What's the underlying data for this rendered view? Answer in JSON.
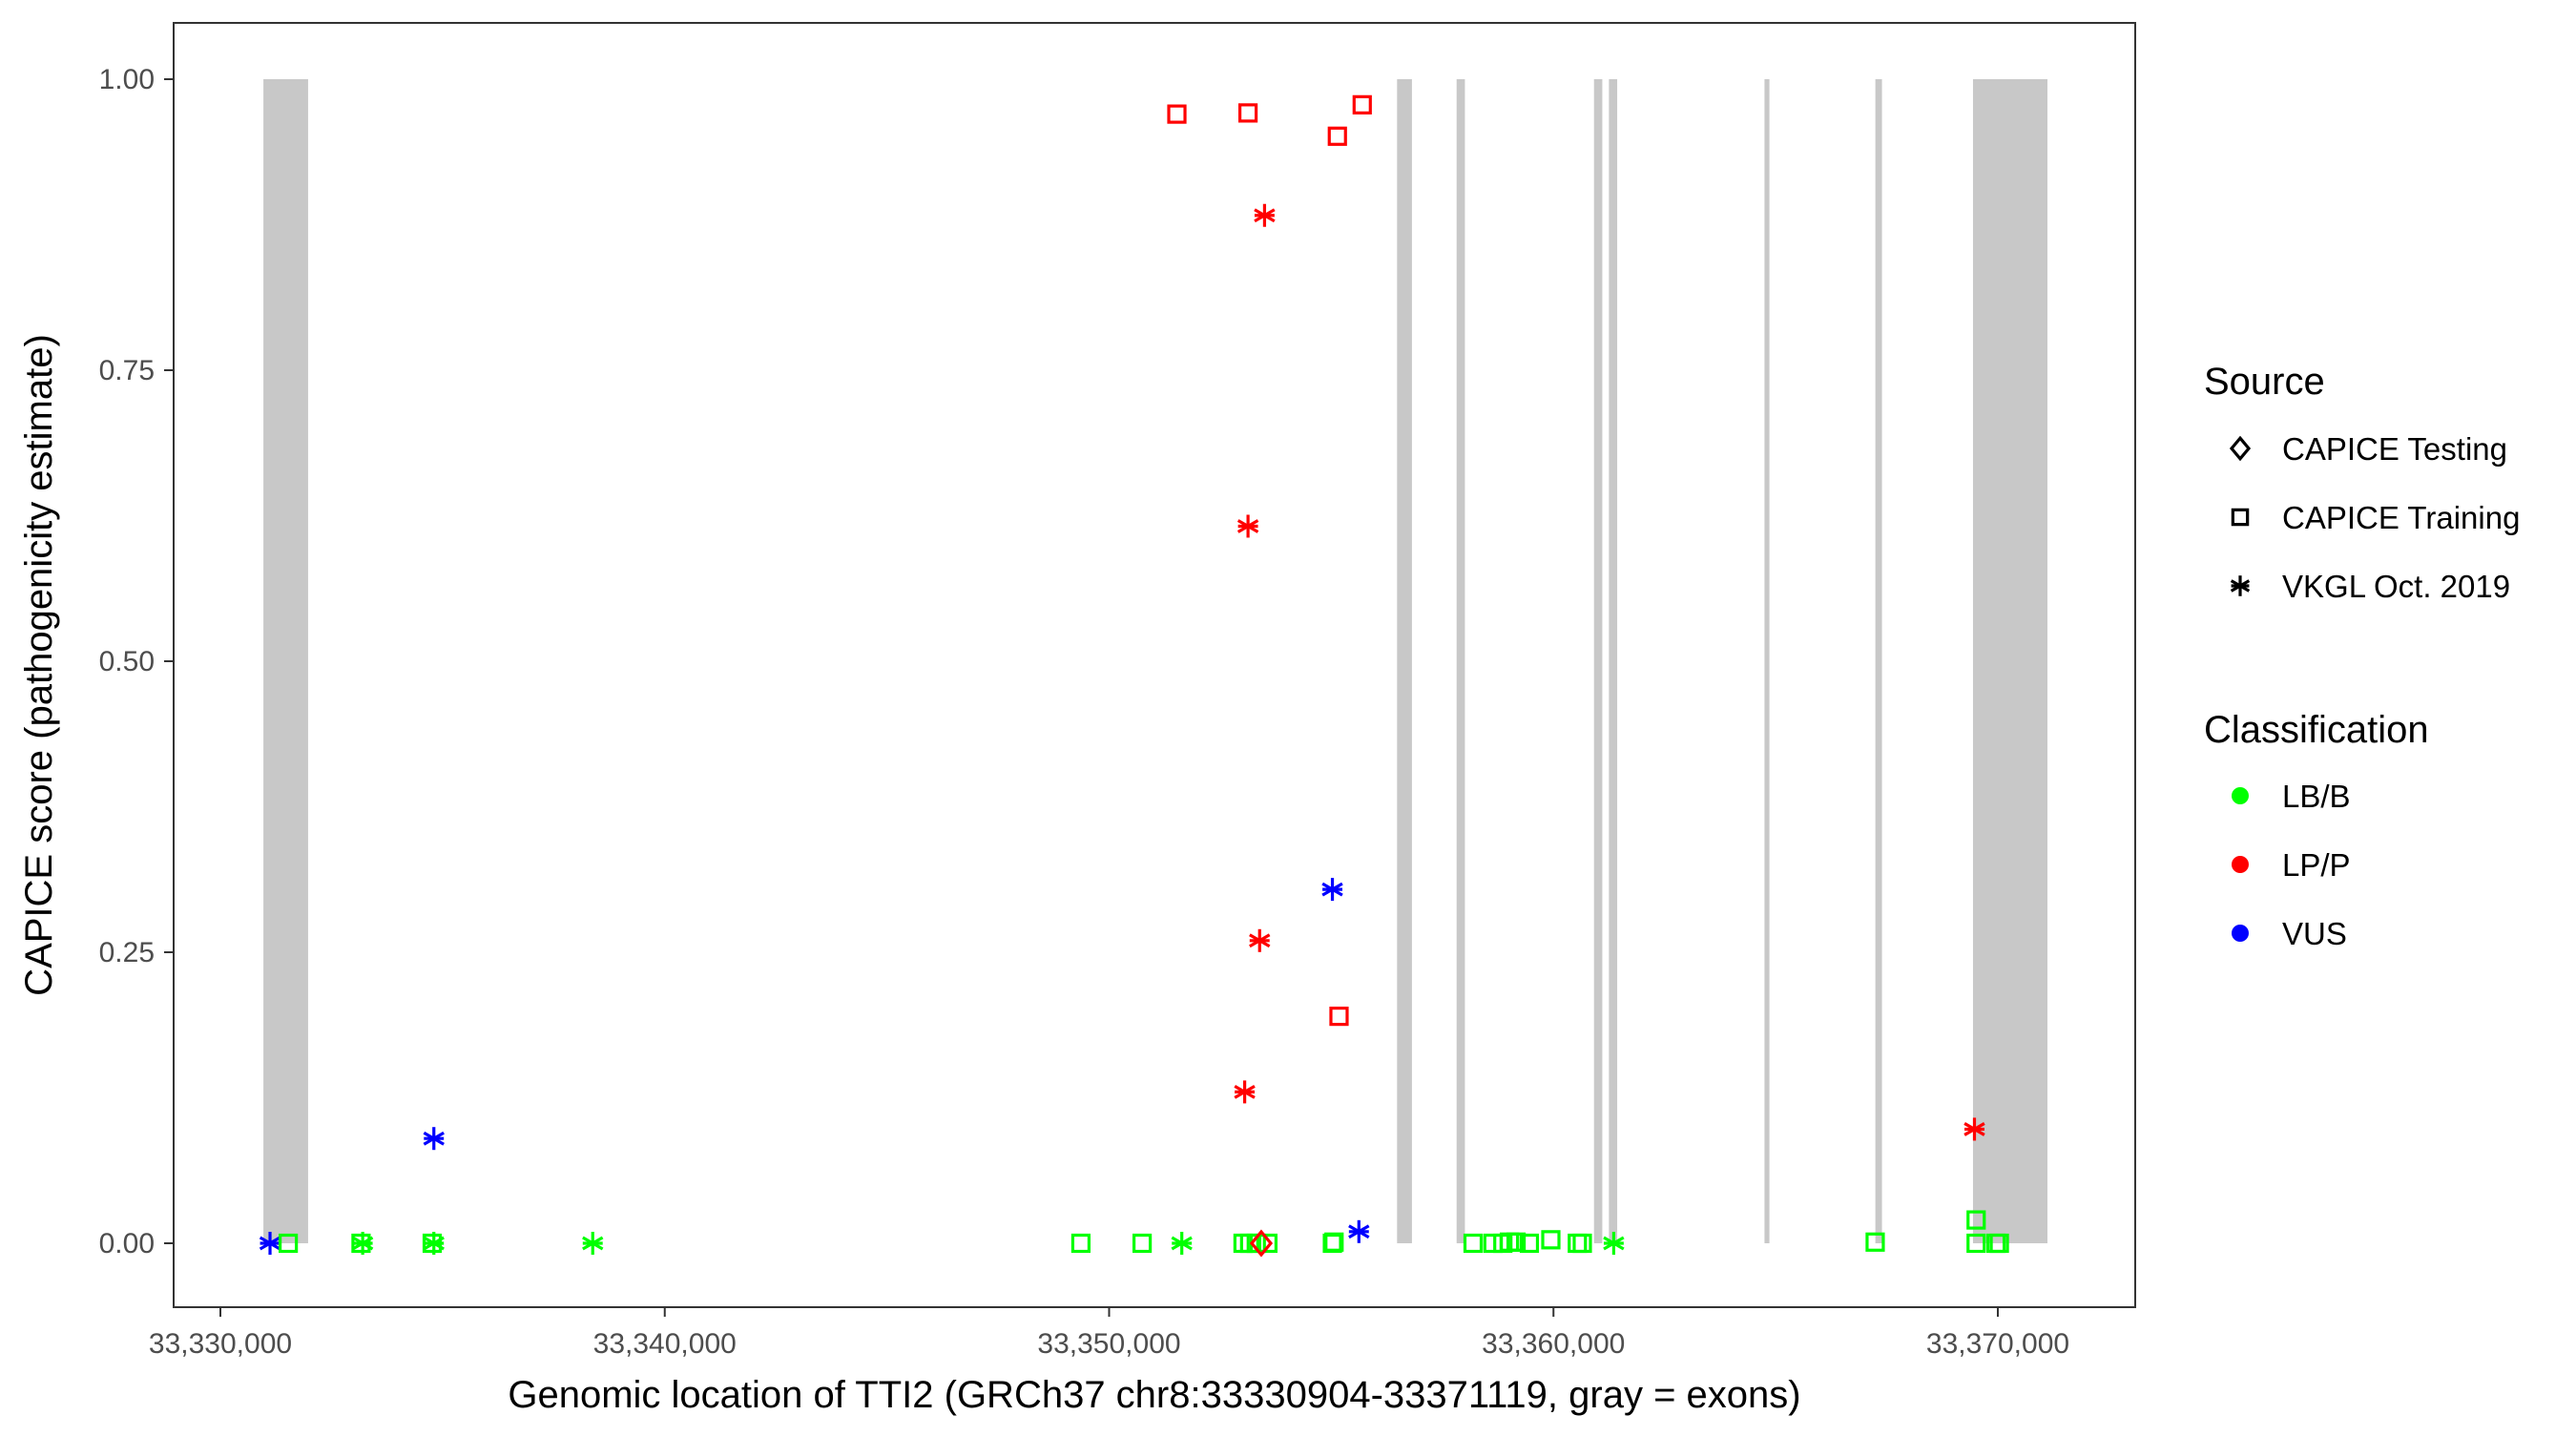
{
  "chart_data": {
    "type": "scatter",
    "xlabel": "Genomic location of TTI2 (GRCh37 chr8:33330904-33371119, gray = exons)",
    "ylabel": "CAPICE score (pathogenicity estimate)",
    "xlim": [
      33328100,
      33373000
    ],
    "ylim": [
      -0.045,
      1.045
    ],
    "x_ticks": [
      33330000,
      33340000,
      33350000,
      33360000,
      33370000
    ],
    "x_tick_labels": [
      "33,330,000",
      "33,340,000",
      "33,350,000",
      "33,360,000",
      "33,370,000"
    ],
    "y_ticks": [
      0,
      0.25,
      0.5,
      0.75,
      1
    ],
    "y_tick_labels": [
      "0.00",
      "0.25",
      "0.50",
      "0.75",
      "1.00"
    ],
    "grid": false,
    "exon_color": "#C8C8C8",
    "exons": [
      [
        33330968,
        33331974
      ],
      [
        33356480,
        33356815
      ],
      [
        33357820,
        33358007
      ],
      [
        33360912,
        33361099
      ],
      [
        33361248,
        33361434
      ],
      [
        33364749,
        33364860
      ],
      [
        33367244,
        33367393
      ],
      [
        33369441,
        33371117
      ]
    ],
    "legend": {
      "placement": "right",
      "source_title": "Source",
      "sources": [
        {
          "key": "testing",
          "label": "CAPICE Testing",
          "shape": "diamond"
        },
        {
          "key": "training",
          "label": "CAPICE Training",
          "shape": "square"
        },
        {
          "key": "vkgl",
          "label": "VKGL Oct. 2019",
          "shape": "asterisk"
        }
      ],
      "class_title": "Classification",
      "classes": [
        {
          "key": "LB/B",
          "label": "LB/B",
          "color": "#00FF00"
        },
        {
          "key": "LP/P",
          "label": "LP/P",
          "color": "#FF0000"
        },
        {
          "key": "VUS",
          "label": "VUS",
          "color": "#0000FF"
        }
      ]
    },
    "points": [
      {
        "x": 33351525,
        "y": 0.97,
        "source": "training",
        "class": "LP/P"
      },
      {
        "x": 33353126,
        "y": 0.971,
        "source": "training",
        "class": "LP/P"
      },
      {
        "x": 33355137,
        "y": 0.951,
        "source": "training",
        "class": "LP/P"
      },
      {
        "x": 33355696,
        "y": 0.978,
        "source": "training",
        "class": "LP/P"
      },
      {
        "x": 33355174,
        "y": 0.195,
        "source": "training",
        "class": "LP/P"
      },
      {
        "x": 33353498,
        "y": 0.883,
        "source": "vkgl",
        "class": "LP/P"
      },
      {
        "x": 33353126,
        "y": 0.616,
        "source": "vkgl",
        "class": "LP/P"
      },
      {
        "x": 33353387,
        "y": 0.26,
        "source": "vkgl",
        "class": "LP/P"
      },
      {
        "x": 33353051,
        "y": 0.13,
        "source": "vkgl",
        "class": "LP/P"
      },
      {
        "x": 33369474,
        "y": 0.098,
        "source": "vkgl",
        "class": "LP/P"
      },
      {
        "x": 33331117,
        "y": 0.0,
        "source": "vkgl",
        "class": "VUS"
      },
      {
        "x": 33334804,
        "y": 0.09,
        "source": "vkgl",
        "class": "VUS"
      },
      {
        "x": 33355025,
        "y": 0.304,
        "source": "vkgl",
        "class": "VUS"
      },
      {
        "x": 33355621,
        "y": 0.01,
        "source": "vkgl",
        "class": "VUS"
      },
      {
        "x": 33331527,
        "y": 0.0,
        "source": "training",
        "class": "LB/B"
      },
      {
        "x": 33333165,
        "y": 0.0,
        "source": "training",
        "class": "LB/B"
      },
      {
        "x": 33334767,
        "y": 0.0,
        "source": "training",
        "class": "LB/B"
      },
      {
        "x": 33349365,
        "y": 0.0,
        "source": "training",
        "class": "LB/B"
      },
      {
        "x": 33350743,
        "y": 0.0,
        "source": "training",
        "class": "LB/B"
      },
      {
        "x": 33353014,
        "y": 0.0,
        "source": "training",
        "class": "LB/B"
      },
      {
        "x": 33353163,
        "y": 0.0,
        "source": "training",
        "class": "LB/B"
      },
      {
        "x": 33353312,
        "y": 0.0,
        "source": "training",
        "class": "LB/B"
      },
      {
        "x": 33353573,
        "y": 0.0,
        "source": "training",
        "class": "LB/B"
      },
      {
        "x": 33355025,
        "y": 0.0,
        "source": "training",
        "class": "LB/B"
      },
      {
        "x": 33355062,
        "y": 0.001,
        "source": "training",
        "class": "LB/B"
      },
      {
        "x": 33358191,
        "y": 0.0,
        "source": "training",
        "class": "LB/B"
      },
      {
        "x": 33358638,
        "y": 0.0,
        "source": "training",
        "class": "LB/B"
      },
      {
        "x": 33358861,
        "y": 0.0,
        "source": "training",
        "class": "LB/B"
      },
      {
        "x": 33359010,
        "y": 0.001,
        "source": "training",
        "class": "LB/B"
      },
      {
        "x": 33359159,
        "y": 0.001,
        "source": "training",
        "class": "LB/B"
      },
      {
        "x": 33359457,
        "y": 0.0,
        "source": "training",
        "class": "LB/B"
      },
      {
        "x": 33359941,
        "y": 0.003,
        "source": "training",
        "class": "LB/B"
      },
      {
        "x": 33360537,
        "y": 0.0,
        "source": "training",
        "class": "LB/B"
      },
      {
        "x": 33360649,
        "y": 0.0,
        "source": "training",
        "class": "LB/B"
      },
      {
        "x": 33367240,
        "y": 0.001,
        "source": "training",
        "class": "LB/B"
      },
      {
        "x": 33369512,
        "y": 0.02,
        "source": "training",
        "class": "LB/B"
      },
      {
        "x": 33369512,
        "y": 0.0,
        "source": "training",
        "class": "LB/B"
      },
      {
        "x": 33369959,
        "y": 0.0,
        "source": "training",
        "class": "LB/B"
      },
      {
        "x": 33370034,
        "y": 0.0,
        "source": "training",
        "class": "LB/B"
      },
      {
        "x": 33333202,
        "y": 0.0,
        "source": "vkgl",
        "class": "LB/B"
      },
      {
        "x": 33334804,
        "y": 0.0,
        "source": "vkgl",
        "class": "LB/B"
      },
      {
        "x": 33338379,
        "y": 0.0,
        "source": "vkgl",
        "class": "LB/B"
      },
      {
        "x": 33351636,
        "y": 0.0,
        "source": "vkgl",
        "class": "LB/B"
      },
      {
        "x": 33361356,
        "y": 0.0,
        "source": "vkgl",
        "class": "LB/B"
      },
      {
        "x": 33353424,
        "y": 0.0,
        "source": "testing",
        "class": "LP/P"
      }
    ]
  }
}
